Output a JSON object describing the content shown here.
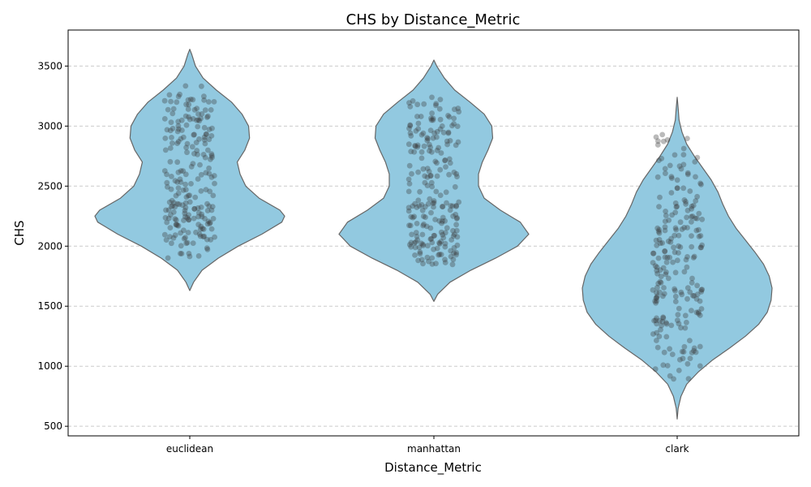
{
  "chart_data": {
    "type": "violin",
    "title": "CHS by Distance_Metric",
    "xlabel": "Distance_Metric",
    "ylabel": "CHS",
    "categories": [
      "euclidean",
      "manhattan",
      "clark"
    ],
    "ylim": [
      420,
      3800
    ],
    "yticks": [
      500,
      1000,
      1500,
      2000,
      2500,
      3000,
      3500
    ],
    "grid": "horizontal dashed",
    "colors": {
      "violin_fill": "#92c9e0",
      "violin_edge": "#666666",
      "points": "#3a3a3a",
      "grid": "#cccccc"
    },
    "series": [
      {
        "category": "euclidean",
        "min": 1900,
        "max": 3370,
        "kde_range": [
          1630,
          3640
        ],
        "density_profile": [
          [
            1630,
            0.0
          ],
          [
            1700,
            0.04
          ],
          [
            1800,
            0.13
          ],
          [
            1900,
            0.3
          ],
          [
            2000,
            0.51
          ],
          [
            2100,
            0.76
          ],
          [
            2200,
            0.97
          ],
          [
            2250,
            1.0
          ],
          [
            2300,
            0.95
          ],
          [
            2400,
            0.73
          ],
          [
            2500,
            0.59
          ],
          [
            2600,
            0.53
          ],
          [
            2700,
            0.5
          ],
          [
            2800,
            0.58
          ],
          [
            2900,
            0.63
          ],
          [
            3000,
            0.62
          ],
          [
            3100,
            0.55
          ],
          [
            3200,
            0.44
          ],
          [
            3300,
            0.28
          ],
          [
            3400,
            0.14
          ],
          [
            3500,
            0.06
          ],
          [
            3600,
            0.02
          ],
          [
            3640,
            0.0
          ]
        ]
      },
      {
        "category": "manhattan",
        "min": 1830,
        "max": 3260,
        "kde_range": [
          1540,
          3550
        ],
        "density_profile": [
          [
            1540,
            0.0
          ],
          [
            1600,
            0.04
          ],
          [
            1700,
            0.17
          ],
          [
            1800,
            0.39
          ],
          [
            1900,
            0.65
          ],
          [
            2000,
            0.88
          ],
          [
            2100,
            1.0
          ],
          [
            2200,
            0.91
          ],
          [
            2300,
            0.7
          ],
          [
            2400,
            0.53
          ],
          [
            2500,
            0.47
          ],
          [
            2600,
            0.47
          ],
          [
            2700,
            0.51
          ],
          [
            2800,
            0.57
          ],
          [
            2900,
            0.62
          ],
          [
            3000,
            0.61
          ],
          [
            3100,
            0.53
          ],
          [
            3200,
            0.38
          ],
          [
            3300,
            0.22
          ],
          [
            3400,
            0.11
          ],
          [
            3500,
            0.03
          ],
          [
            3550,
            0.0
          ]
        ]
      },
      {
        "category": "clark",
        "min": 890,
        "max": 2930,
        "kde_range": [
          560,
          3240
        ],
        "density_profile": [
          [
            560,
            0.0
          ],
          [
            650,
            0.01
          ],
          [
            750,
            0.04
          ],
          [
            850,
            0.1
          ],
          [
            950,
            0.22
          ],
          [
            1050,
            0.37
          ],
          [
            1150,
            0.55
          ],
          [
            1250,
            0.72
          ],
          [
            1350,
            0.86
          ],
          [
            1450,
            0.95
          ],
          [
            1550,
            0.99
          ],
          [
            1650,
            1.0
          ],
          [
            1750,
            0.97
          ],
          [
            1850,
            0.91
          ],
          [
            1950,
            0.82
          ],
          [
            2050,
            0.72
          ],
          [
            2150,
            0.62
          ],
          [
            2250,
            0.54
          ],
          [
            2350,
            0.48
          ],
          [
            2450,
            0.43
          ],
          [
            2550,
            0.36
          ],
          [
            2650,
            0.27
          ],
          [
            2750,
            0.18
          ],
          [
            2850,
            0.1
          ],
          [
            2950,
            0.05
          ],
          [
            3050,
            0.02
          ],
          [
            3150,
            0.01
          ],
          [
            3240,
            0.0
          ]
        ]
      }
    ]
  }
}
